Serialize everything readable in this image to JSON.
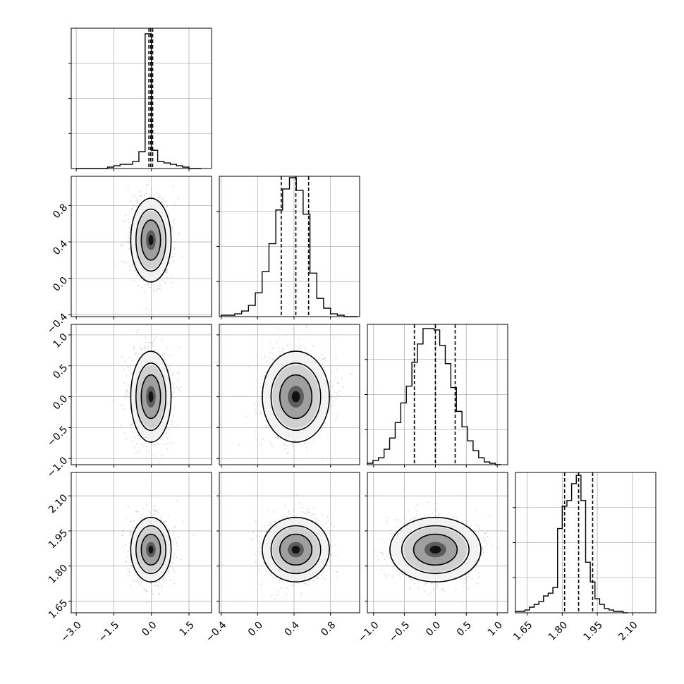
{
  "chart_data": {
    "type": "corner",
    "parameters": 4,
    "grid": true,
    "histograms": [
      {
        "param": 0,
        "bins": [
          -3.0,
          -2.75,
          -2.5,
          -2.25,
          -2.0,
          -1.75,
          -1.5,
          -1.25,
          -1.0,
          -0.75,
          -0.5,
          -0.25,
          0.0,
          0.25,
          0.5,
          0.75,
          1.0,
          1.25,
          1.5,
          1.75,
          2.0
        ],
        "counts": [
          0,
          0,
          0,
          0,
          0,
          0.01,
          0.02,
          0.03,
          0.03,
          0.05,
          0.12,
          0.96,
          0.13,
          0.05,
          0.04,
          0.03,
          0.02,
          0.01,
          0,
          0
        ],
        "quantiles": [
          -0.1,
          -0.03,
          0.05
        ]
      },
      {
        "param": 1,
        "bins": [
          -0.4,
          -0.325,
          -0.25,
          -0.175,
          -0.1,
          -0.025,
          0.05,
          0.125,
          0.2,
          0.275,
          0.35,
          0.425,
          0.5,
          0.575,
          0.65,
          0.725,
          0.8,
          0.875,
          0.95,
          1.025,
          1.1
        ],
        "counts": [
          0.01,
          0.01,
          0.02,
          0.04,
          0.08,
          0.17,
          0.32,
          0.52,
          0.76,
          0.91,
          0.99,
          0.9,
          0.73,
          0.31,
          0.13,
          0.06,
          0.02,
          0.01,
          0,
          0
        ],
        "quantiles": [
          0.26,
          0.42,
          0.56
        ]
      },
      {
        "param": 2,
        "bins": [
          -1.1,
          -1.01,
          -0.92,
          -0.83,
          -0.74,
          -0.65,
          -0.56,
          -0.47,
          -0.38,
          -0.29,
          -0.2,
          -0.11,
          -0.02,
          0.07,
          0.16,
          0.25,
          0.34,
          0.43,
          0.52,
          0.61,
          0.7,
          0.79,
          0.88,
          0.97,
          1.06
        ],
        "counts": [
          0.01,
          0.03,
          0.05,
          0.11,
          0.19,
          0.3,
          0.44,
          0.56,
          0.73,
          0.86,
          0.97,
          0.97,
          0.96,
          0.85,
          0.72,
          0.55,
          0.38,
          0.27,
          0.17,
          0.1,
          0.05,
          0.02,
          0.01,
          0
        ],
        "quantiles": [
          -0.34,
          0.0,
          0.32
        ]
      },
      {
        "param": 3,
        "bins": [
          1.6,
          1.62,
          1.64,
          1.66,
          1.68,
          1.7,
          1.72,
          1.74,
          1.76,
          1.78,
          1.8,
          1.82,
          1.84,
          1.86,
          1.88,
          1.9,
          1.92,
          1.94,
          1.96,
          1.98,
          2.0,
          2.02,
          2.04,
          2.06,
          2.08
        ],
        "counts": [
          0.01,
          0.01,
          0.02,
          0.04,
          0.06,
          0.08,
          0.12,
          0.14,
          0.18,
          0.6,
          0.76,
          0.8,
          0.92,
          0.98,
          0.8,
          0.36,
          0.22,
          0.1,
          0.06,
          0.03,
          0.02,
          0.01,
          0.01,
          0
        ],
        "quantiles": [
          1.81,
          1.87,
          1.93
        ]
      }
    ],
    "pairs": [
      {
        "x": 0,
        "y": 1,
        "center": [
          -0.02,
          0.42
        ],
        "sx": 0.35,
        "sy": 0.2,
        "rho": 0.0
      },
      {
        "x": 0,
        "y": 2,
        "center": [
          -0.02,
          0.0
        ],
        "sx": 0.35,
        "sy": 0.32,
        "rho": 0.0
      },
      {
        "x": 1,
        "y": 2,
        "center": [
          0.42,
          0.0
        ],
        "sx": 0.16,
        "sy": 0.32,
        "rho": 0.0
      },
      {
        "x": 0,
        "y": 3,
        "center": [
          -0.02,
          1.87
        ],
        "sx": 0.35,
        "sy": 0.06,
        "rho": 0.0
      },
      {
        "x": 1,
        "y": 3,
        "center": [
          0.42,
          1.87
        ],
        "sx": 0.16,
        "sy": 0.06,
        "rho": 0.0
      },
      {
        "x": 2,
        "y": 3,
        "center": [
          0.0,
          1.87
        ],
        "sx": 0.32,
        "sy": 0.06,
        "rho": 0.0
      }
    ],
    "axes": [
      {
        "lim": [
          -3.2,
          2.4
        ],
        "ticks": [
          -3.0,
          -1.5,
          0.0,
          1.5
        ],
        "tick_labels": [
          "−3.0",
          "−1.5",
          "0.0",
          "1.5"
        ]
      },
      {
        "lim": [
          -0.42,
          1.12
        ],
        "ticks": [
          -0.4,
          0.0,
          0.4,
          0.8
        ],
        "tick_labels": [
          "−0.4",
          "0.0",
          "0.4",
          "0.8"
        ]
      },
      {
        "lim": [
          -1.1,
          1.17
        ],
        "ticks": [
          -1.0,
          -0.5,
          0.0,
          0.5,
          1.0
        ],
        "tick_labels": [
          "−1.0",
          "−0.5",
          "0.0",
          "0.5",
          "1.0"
        ]
      },
      {
        "lim": [
          1.6,
          2.2
        ],
        "ticks": [
          1.65,
          1.8,
          1.95,
          2.1
        ],
        "tick_labels": [
          "1.65",
          "1.80",
          "1.95",
          "2.10"
        ]
      }
    ]
  }
}
